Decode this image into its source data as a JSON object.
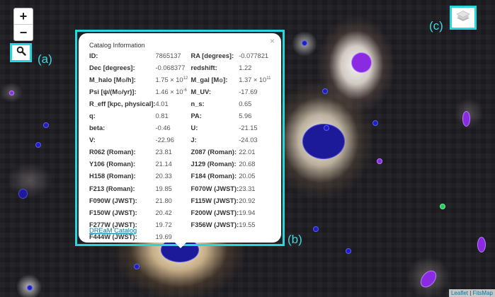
{
  "zoom": {
    "in_label": "+",
    "out_label": "−"
  },
  "annotations": {
    "a": "(a)",
    "b": "(b)",
    "c": "(c)"
  },
  "popup": {
    "close_label": "×",
    "title": "Catalog Information",
    "link": "DREaM Catalog",
    "rows": [
      [
        {
          "text": "ID:"
        },
        {
          "text": "7865137"
        },
        {
          "text": "RA [degrees]:"
        },
        {
          "text": "-0.077821"
        }
      ],
      [
        {
          "text": "Dec [degrees]:"
        },
        {
          "text": "-0.068377"
        },
        {
          "text": "redshift:"
        },
        {
          "text": "1.22"
        }
      ],
      [
        {
          "text": "M_halo [M",
          "sub": "⊙",
          "after": "/h]:"
        },
        {
          "text": "1.75 × 10",
          "sup": "12"
        },
        {
          "text": "M_gal [M",
          "sub": "⊙",
          "after": "]:"
        },
        {
          "text": "1.37 × 10",
          "sup": "11"
        }
      ],
      [
        {
          "text": "Psi [ψ/(M",
          "sub": "⊙",
          "after": "/yr)]:"
        },
        {
          "text": "1.46 × 10",
          "sup": "-6"
        },
        {
          "text": "M_UV:"
        },
        {
          "text": "-17.69"
        }
      ],
      [
        {
          "text": "R_eff [kpc, physical]:"
        },
        {
          "text": "4.01"
        },
        {
          "text": "n_s:"
        },
        {
          "text": "0.65"
        }
      ],
      [
        {
          "text": "q:"
        },
        {
          "text": "0.81"
        },
        {
          "text": "PA:"
        },
        {
          "text": "5.96"
        }
      ],
      [
        {
          "text": "beta:"
        },
        {
          "text": "-0.46"
        },
        {
          "text": "U:"
        },
        {
          "text": "-21.15"
        }
      ],
      [
        {
          "text": "V:"
        },
        {
          "text": "-22.96"
        },
        {
          "text": "J:"
        },
        {
          "text": "-24.03"
        }
      ],
      [
        {
          "text": "R062 (Roman):"
        },
        {
          "text": "23.81"
        },
        {
          "text": "Z087 (Roman):"
        },
        {
          "text": "22.01"
        }
      ],
      [
        {
          "text": "Y106 (Roman):"
        },
        {
          "text": "21.14"
        },
        {
          "text": "J129 (Roman):"
        },
        {
          "text": "20.68"
        }
      ],
      [
        {
          "text": "H158 (Roman):"
        },
        {
          "text": "20.33"
        },
        {
          "text": "F184 (Roman):"
        },
        {
          "text": "20.05"
        }
      ],
      [
        {
          "text": "F213 (Roman):"
        },
        {
          "text": "19.85"
        },
        {
          "text": "F070W (JWST):"
        },
        {
          "text": "23.31"
        }
      ],
      [
        {
          "text": "F090W (JWST):"
        },
        {
          "text": "21.80"
        },
        {
          "text": "F115W (JWST):"
        },
        {
          "text": "20.92"
        }
      ],
      [
        {
          "text": "F150W (JWST):"
        },
        {
          "text": "20.42"
        },
        {
          "text": "F200W (JWST):"
        },
        {
          "text": "19.94"
        }
      ],
      [
        {
          "text": "F277W (JWST):"
        },
        {
          "text": "19.72"
        },
        {
          "text": "F356W (JWST):"
        },
        {
          "text": "19.55"
        }
      ],
      [
        {
          "text": "F444W (JWST):"
        },
        {
          "text": "19.69"
        },
        {
          "text": ""
        },
        {
          "text": ""
        }
      ]
    ]
  },
  "attribution": {
    "leaflet": "Leaflet",
    "separator": " | ",
    "fitsmap": "FitsMap"
  },
  "icons": {
    "search": "magnifier-icon",
    "layers": "layers-icon"
  },
  "colors": {
    "annotation": "#27d7e0",
    "marker_blue": "#1e1ec8",
    "marker_purple": "#8a2be2",
    "marker_green": "#1fd15a"
  }
}
